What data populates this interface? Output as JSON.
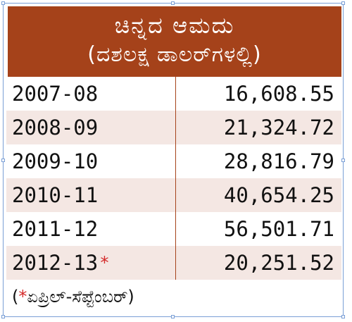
{
  "header": {
    "title": "ಚಿನ್ನದ ಆಮದು",
    "subtitle": "(ದಶಲಕ್ಷ ಡಾಲರ್‌ಗಳಲ್ಲಿ)"
  },
  "rows": [
    {
      "year": "2007-08",
      "value": "16,608.55",
      "marker": ""
    },
    {
      "year": "2008-09",
      "value": "21,324.72",
      "marker": ""
    },
    {
      "year": "2009-10",
      "value": "28,816.79",
      "marker": ""
    },
    {
      "year": "2010-11",
      "value": "40,654.25",
      "marker": ""
    },
    {
      "year": "2011-12",
      "value": "56,501.71",
      "marker": ""
    },
    {
      "year": "2012-13",
      "value": "20,251.52",
      "marker": "*"
    }
  ],
  "footnote": {
    "open": "(",
    "marker": "*",
    "text": "ಏಪ್ರಿಲ್‌-ಸೆಪ್ಟೆಂಬರ್‌)"
  },
  "colors": {
    "header_bg": "#a5421a",
    "alt_row_bg": "#f4e7e3",
    "asterisk": "#d42a2a"
  }
}
